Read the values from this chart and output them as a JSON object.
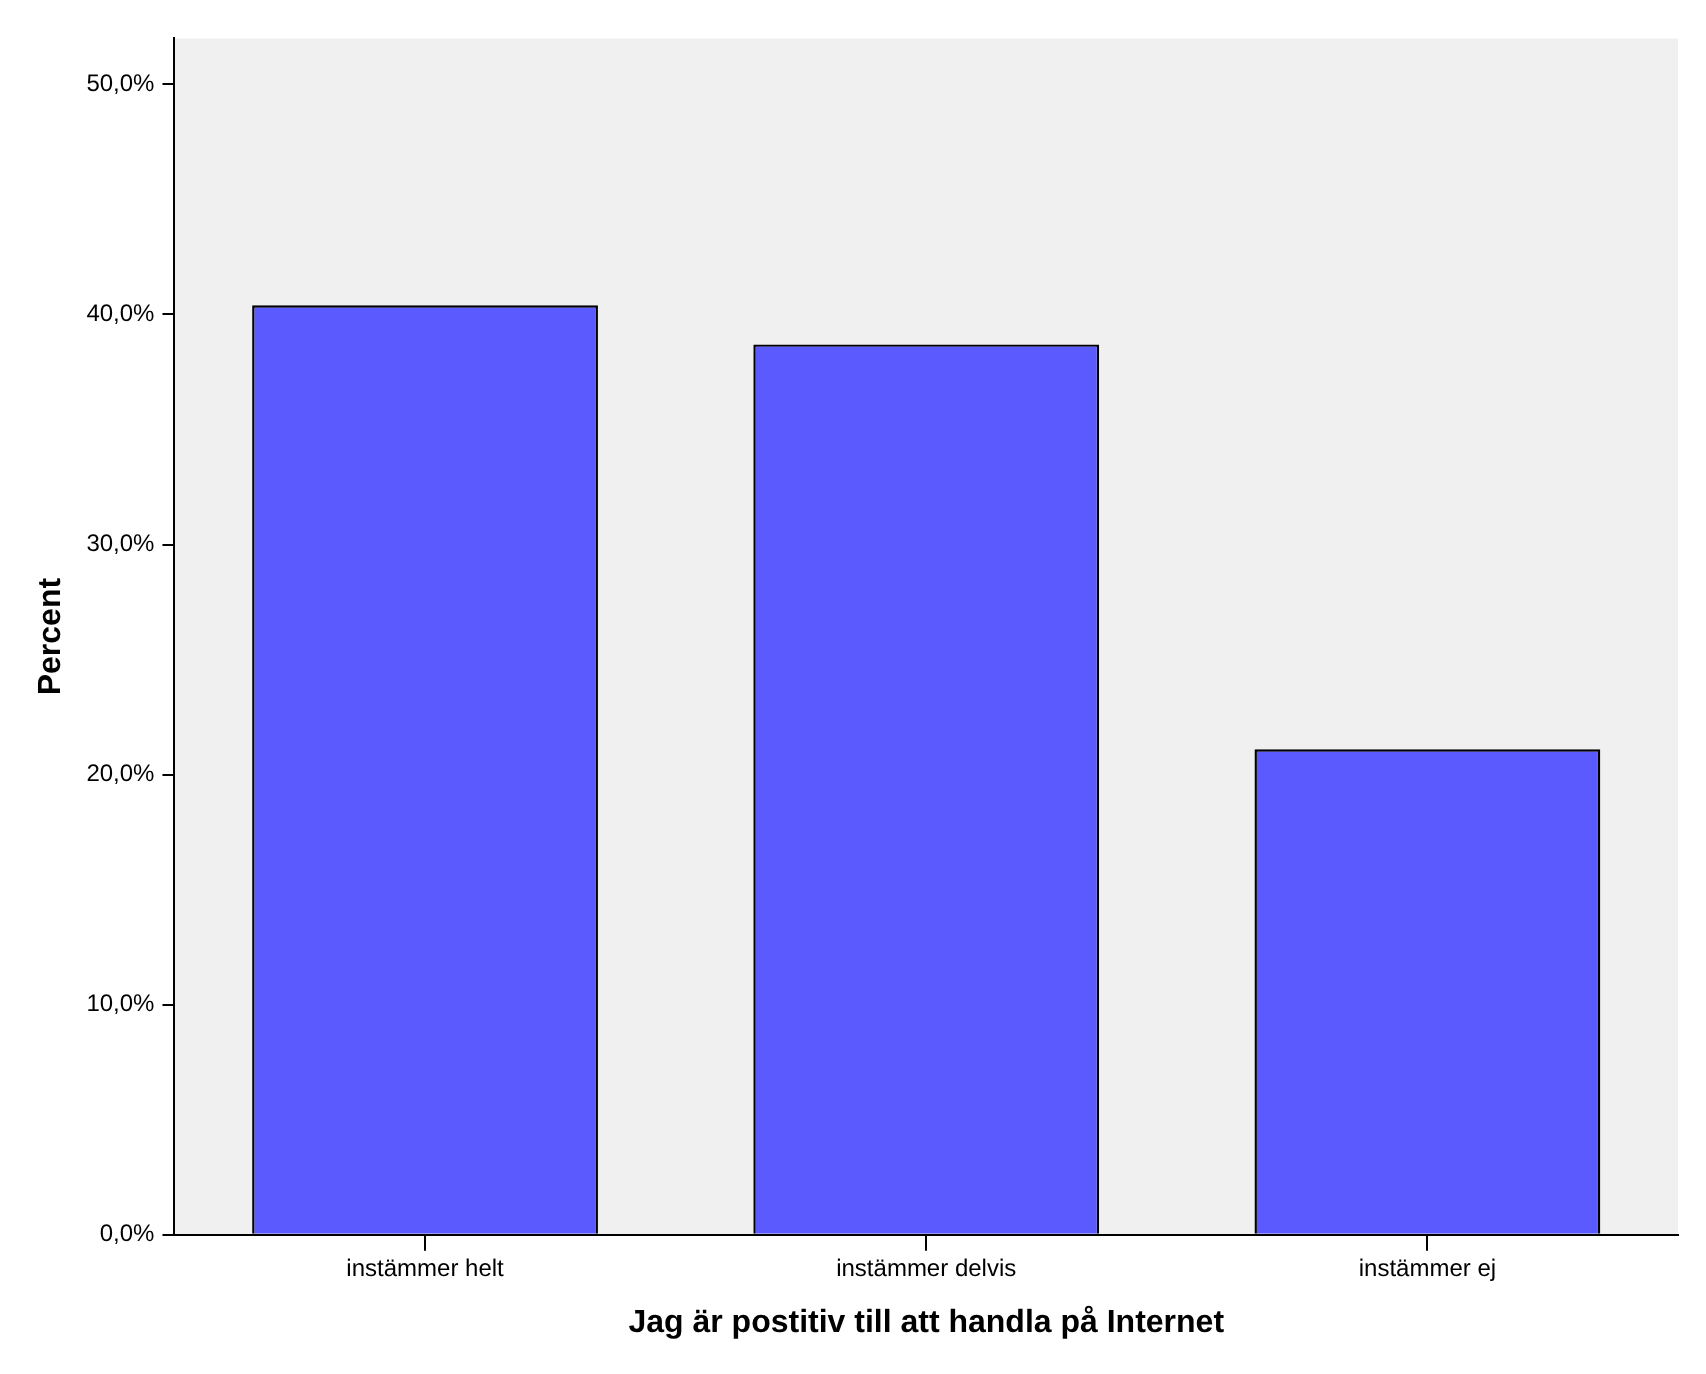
{
  "chart_data": {
    "type": "bar",
    "xlabel": "Jag är postitiv till att handla på Internet",
    "ylabel": "Percent",
    "categories": [
      "instämmer helt",
      "instämmer delvis",
      "instämmer ej"
    ],
    "values": [
      40.4,
      38.7,
      21.1
    ],
    "color": "#5a5aff",
    "ylim": [
      0,
      52
    ],
    "yticks": [
      {
        "value": 0,
        "label": "0,0%"
      },
      {
        "value": 10,
        "label": "10,0%"
      },
      {
        "value": 20,
        "label": "20,0%"
      },
      {
        "value": 30,
        "label": "30,0%"
      },
      {
        "value": 40,
        "label": "40,0%"
      },
      {
        "value": 50,
        "label": "50,0%"
      }
    ],
    "grid": false,
    "legend": false
  }
}
